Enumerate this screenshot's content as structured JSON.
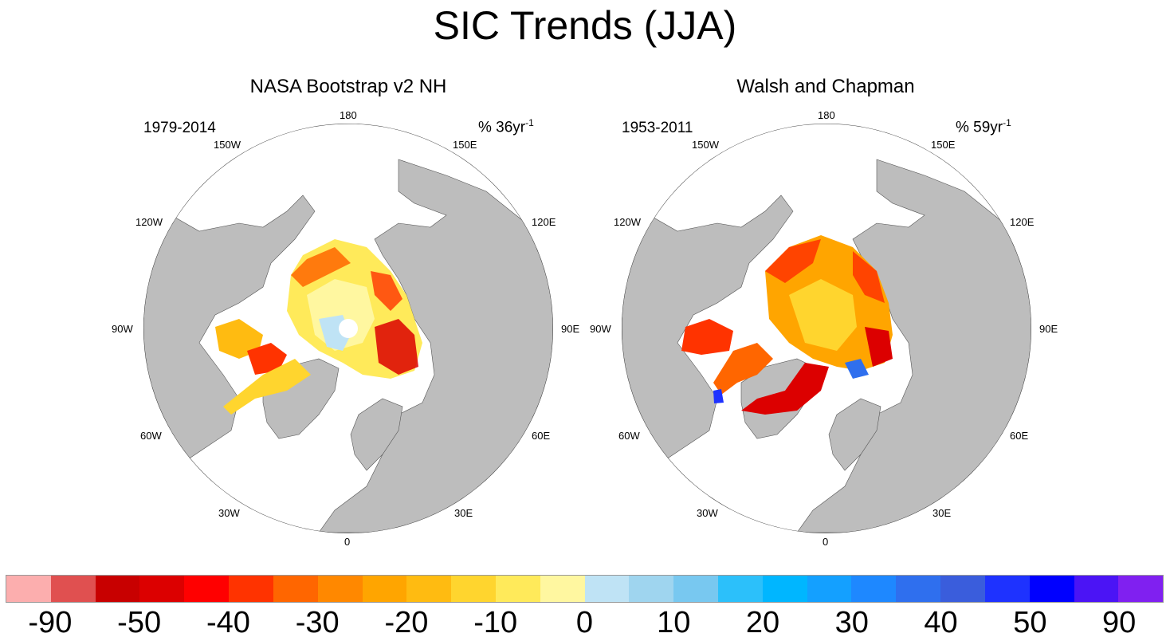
{
  "title": "SIC Trends (JJA)",
  "panels": [
    {
      "title": "NASA Bootstrap v2 NH",
      "period": "1979-2014",
      "units_prefix": "% 36yr",
      "units_sup": "-1"
    },
    {
      "title": "Walsh and Chapman",
      "period": "1953-2011",
      "units_prefix": "% 59yr",
      "units_sup": "-1"
    }
  ],
  "longitude_labels": [
    "180",
    "150E",
    "120E",
    "90E",
    "60E",
    "30E",
    "0",
    "30W",
    "60W",
    "90W",
    "120W",
    "150W"
  ],
  "colorbar": {
    "colors": [
      "#fcaeae",
      "#e05050",
      "#c80000",
      "#dc0000",
      "#ff0000",
      "#ff3300",
      "#ff6600",
      "#ff8800",
      "#ffa500",
      "#ffbb11",
      "#ffd52e",
      "#ffea5a",
      "#fff7a0",
      "#bfe3f5",
      "#9fd5ef",
      "#78c8f0",
      "#2cc0fa",
      "#00b6ff",
      "#14a0ff",
      "#1e88ff",
      "#2f6fee",
      "#3a5ddc",
      "#1e32ff",
      "#0000ff",
      "#4b14f5",
      "#8020f0"
    ],
    "labels": [
      {
        "text": "-90",
        "boundary": 1
      },
      {
        "text": "-50",
        "boundary": 3
      },
      {
        "text": "-40",
        "boundary": 5
      },
      {
        "text": "-30",
        "boundary": 7
      },
      {
        "text": "-20",
        "boundary": 9
      },
      {
        "text": "-10",
        "boundary": 11
      },
      {
        "text": "0",
        "boundary": 13
      },
      {
        "text": "10",
        "boundary": 15
      },
      {
        "text": "20",
        "boundary": 17
      },
      {
        "text": "30",
        "boundary": 19
      },
      {
        "text": "40",
        "boundary": 21
      },
      {
        "text": "50",
        "boundary": 23
      },
      {
        "text": "90",
        "boundary": 25
      }
    ]
  }
}
